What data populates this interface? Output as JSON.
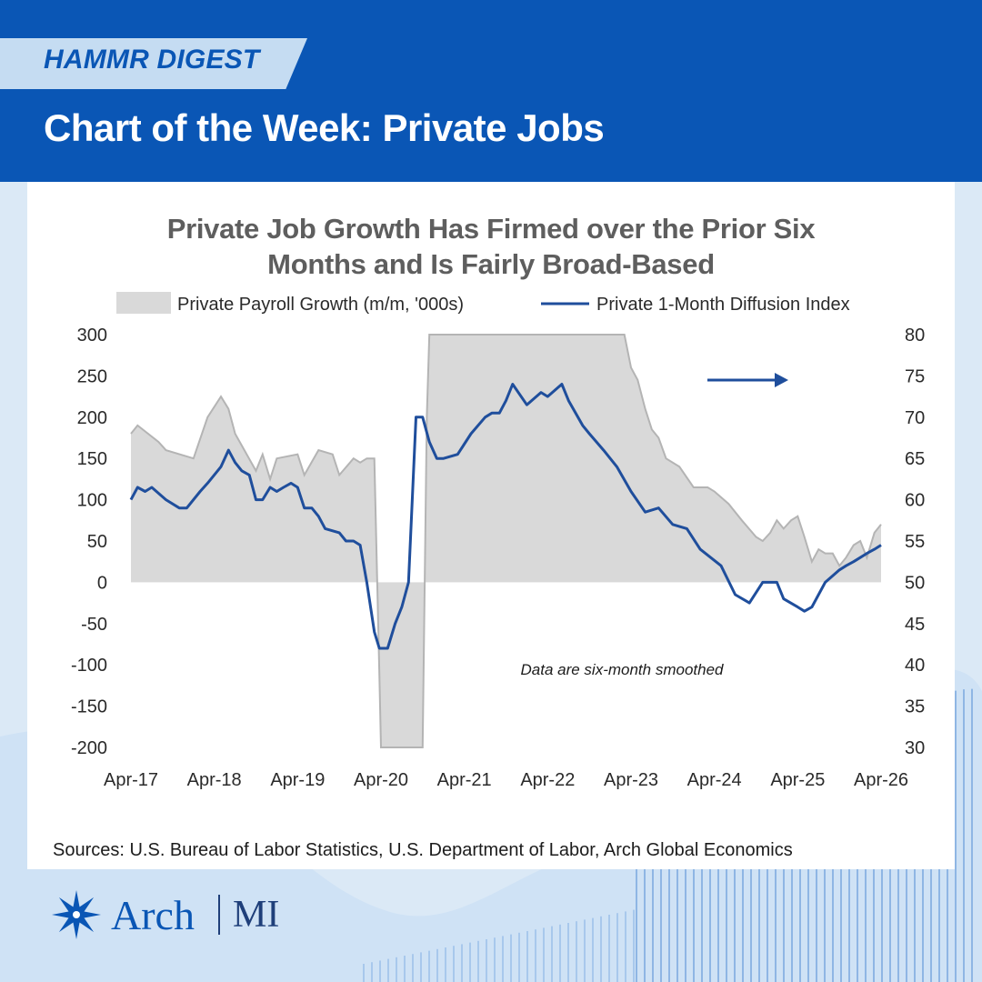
{
  "header": {
    "tag": "HAMMR DIGEST",
    "title": "Chart of the Week: Private Jobs"
  },
  "colors": {
    "brand_blue": "#0a56b5",
    "tag_band": "#c5dcf2",
    "area_fill": "#d9d9d9",
    "area_edge": "#b4b4b4",
    "line": "#1f4e9c"
  },
  "chart_data": {
    "type": "area",
    "title_lines": [
      "Private Job Growth Has Firmed over the Prior Six",
      "Months and Is Fairly Broad-Based"
    ],
    "legend": "top",
    "x_ticks": [
      "Apr-17",
      "Apr-18",
      "Apr-19",
      "Apr-20",
      "Apr-21",
      "Apr-22",
      "Apr-23",
      "Apr-24",
      "Apr-25",
      "Apr-26"
    ],
    "y_left_ticks": [
      "300",
      "250",
      "200",
      "150",
      "100",
      "50",
      "0",
      "-50",
      "-100",
      "-150",
      "-200"
    ],
    "y_right_ticks": [
      "80",
      "75",
      "70",
      "65",
      "60",
      "55",
      "50",
      "45",
      "40",
      "35",
      "30"
    ],
    "y_left_range": [
      -200,
      300
    ],
    "y_right_range": [
      30,
      80
    ],
    "x_range_years": [
      0,
      9
    ],
    "annotation": "Data are six-month smoothed",
    "grid": false,
    "series": [
      {
        "name": "Private Payroll Growth (m/m, '000s)",
        "type": "area",
        "axis": "left",
        "x": [
          0,
          0.08,
          0.33,
          0.42,
          0.75,
          0.92,
          1.08,
          1.17,
          1.25,
          1.5,
          1.58,
          1.67,
          1.75,
          2.0,
          2.08,
          2.25,
          2.42,
          2.5,
          2.67,
          2.75,
          2.83,
          2.92,
          2.98,
          3.0,
          3.08,
          3.17,
          3.25,
          3.33,
          3.42,
          3.5,
          3.55,
          3.58,
          3.67,
          4.0,
          5.0,
          5.5,
          5.67,
          5.75,
          5.83,
          5.92,
          6.0,
          6.08,
          6.17,
          6.25,
          6.33,
          6.42,
          6.58,
          6.75,
          6.92,
          7.0,
          7.17,
          7.33,
          7.5,
          7.58,
          7.67,
          7.75,
          7.83,
          7.92,
          8.0,
          8.08,
          8.17,
          8.25,
          8.33,
          8.42,
          8.5,
          8.58,
          8.67,
          8.75,
          8.83,
          8.92,
          9.0
        ],
        "values": [
          180,
          190,
          170,
          160,
          150,
          200,
          225,
          210,
          180,
          135,
          155,
          125,
          150,
          155,
          130,
          160,
          155,
          130,
          150,
          145,
          150,
          150,
          -110,
          -200,
          -200,
          -200,
          -200,
          -200,
          -200,
          -200,
          200,
          300,
          300,
          300,
          300,
          300,
          300,
          300,
          300,
          300,
          260,
          245,
          210,
          185,
          175,
          150,
          140,
          115,
          115,
          110,
          95,
          75,
          55,
          50,
          60,
          75,
          65,
          75,
          80,
          55,
          25,
          40,
          35,
          35,
          20,
          30,
          45,
          50,
          30,
          60,
          70
        ]
      },
      {
        "name": "Private 1-Month Diffusion Index",
        "type": "line",
        "axis": "right",
        "x": [
          0,
          0.08,
          0.17,
          0.25,
          0.42,
          0.58,
          0.67,
          0.83,
          0.92,
          1.08,
          1.17,
          1.25,
          1.33,
          1.42,
          1.5,
          1.58,
          1.67,
          1.75,
          1.83,
          1.92,
          2.0,
          2.08,
          2.17,
          2.25,
          2.33,
          2.5,
          2.58,
          2.67,
          2.75,
          2.83,
          2.92,
          2.98,
          3.08,
          3.17,
          3.25,
          3.33,
          3.42,
          3.5,
          3.58,
          3.67,
          3.75,
          3.92,
          4.08,
          4.25,
          4.33,
          4.42,
          4.5,
          4.58,
          4.75,
          4.92,
          5.0,
          5.17,
          5.25,
          5.42,
          5.5,
          5.67,
          5.83,
          6.0,
          6.17,
          6.33,
          6.5,
          6.67,
          6.83,
          7.08,
          7.25,
          7.42,
          7.58,
          7.75,
          7.83,
          8.0,
          8.08,
          8.17,
          8.33,
          8.5,
          8.58,
          8.67,
          8.75,
          8.83,
          8.92,
          9.0
        ],
        "values": [
          60,
          61.5,
          61,
          61.5,
          60,
          59,
          59,
          61,
          62,
          64,
          66,
          64.5,
          63.5,
          63,
          60,
          60,
          61.5,
          61,
          61.5,
          62,
          61.5,
          59,
          59,
          58,
          56.5,
          56,
          55,
          55,
          54.5,
          50,
          44,
          42,
          42,
          45,
          47,
          50,
          70,
          70,
          67,
          65,
          65,
          65.5,
          68,
          70,
          70.5,
          70.5,
          72,
          74,
          71.5,
          73,
          72.5,
          74,
          72,
          69,
          68,
          66,
          64,
          61,
          58.5,
          59,
          57,
          56.5,
          54,
          52,
          48.5,
          47.5,
          50,
          50,
          48,
          47,
          46.5,
          47,
          50,
          51.5,
          52,
          52.5,
          53,
          53.5,
          54,
          54.5
        ]
      }
    ]
  },
  "sources": "Sources: U.S. Bureau of Labor Statistics, U.S. Department of Labor, Arch Global Economics",
  "logo": {
    "name": "Arch",
    "suffix": "MI"
  }
}
